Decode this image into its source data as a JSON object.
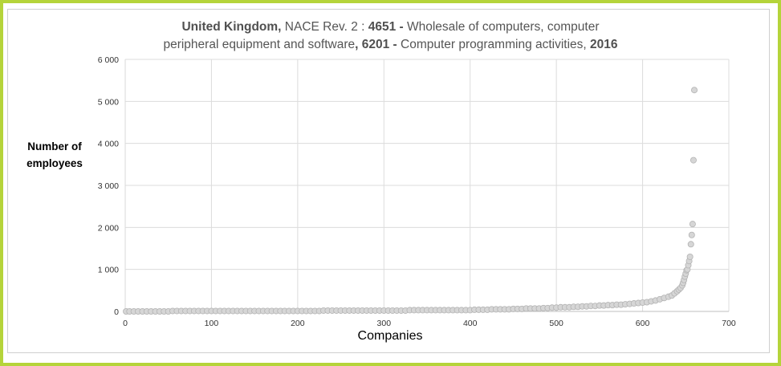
{
  "title": {
    "line1": [
      {
        "text": "United Kingdom,",
        "bold": true
      },
      {
        "text": " NACE Rev. 2 : ",
        "bold": false
      },
      {
        "text": "4651 -",
        "bold": true
      },
      {
        "text": " Wholesale of computers, computer",
        "bold": false
      }
    ],
    "line2": [
      {
        "text": "peripheral equipment and software",
        "bold": false
      },
      {
        "text": ", 6201 -",
        "bold": true
      },
      {
        "text": " Computer programming activities,  ",
        "bold": false
      },
      {
        "text": "2016",
        "bold": true
      }
    ]
  },
  "colors": {
    "frame": "#b5d43a",
    "marker_fill": "#d6d6d6",
    "marker_stroke": "#b3b3b3",
    "grid": "#dcdcdc"
  },
  "chart_data": {
    "type": "scatter",
    "title": "United Kingdom, NACE Rev. 2 : 4651 - Wholesale of computers, computer peripheral equipment and software, 6201 - Computer programming activities,  2016",
    "xlabel": "Companies",
    "ylabel_lines": [
      "Number of",
      "employees"
    ],
    "xlim": [
      0,
      700
    ],
    "ylim": [
      0,
      6000
    ],
    "x_ticks": [
      0,
      100,
      200,
      300,
      400,
      500,
      600,
      700
    ],
    "y_ticks": [
      0,
      1000,
      2000,
      3000,
      4000,
      5000,
      6000
    ],
    "x_tick_labels": [
      "0",
      "100",
      "200",
      "300",
      "400",
      "500",
      "600",
      "700"
    ],
    "y_tick_labels": [
      "0",
      "1 000",
      "2 000",
      "3 000",
      "4 000",
      "5 000",
      "6 000"
    ],
    "grid": true,
    "legend": "none",
    "marker": "circle",
    "points": [
      [
        1,
        0
      ],
      [
        5,
        0
      ],
      [
        10,
        0
      ],
      [
        15,
        0
      ],
      [
        20,
        0
      ],
      [
        25,
        0
      ],
      [
        30,
        0
      ],
      [
        35,
        0
      ],
      [
        40,
        0
      ],
      [
        45,
        0
      ],
      [
        50,
        0
      ],
      [
        55,
        10
      ],
      [
        60,
        10
      ],
      [
        65,
        10
      ],
      [
        70,
        10
      ],
      [
        75,
        10
      ],
      [
        80,
        10
      ],
      [
        85,
        10
      ],
      [
        90,
        10
      ],
      [
        95,
        10
      ],
      [
        100,
        10
      ],
      [
        105,
        10
      ],
      [
        110,
        10
      ],
      [
        115,
        10
      ],
      [
        120,
        10
      ],
      [
        125,
        10
      ],
      [
        130,
        10
      ],
      [
        135,
        10
      ],
      [
        140,
        10
      ],
      [
        145,
        10
      ],
      [
        150,
        10
      ],
      [
        155,
        10
      ],
      [
        160,
        10
      ],
      [
        165,
        10
      ],
      [
        170,
        10
      ],
      [
        175,
        10
      ],
      [
        180,
        10
      ],
      [
        185,
        10
      ],
      [
        190,
        10
      ],
      [
        195,
        10
      ],
      [
        200,
        10
      ],
      [
        205,
        10
      ],
      [
        210,
        10
      ],
      [
        215,
        10
      ],
      [
        220,
        10
      ],
      [
        225,
        10
      ],
      [
        230,
        20
      ],
      [
        235,
        20
      ],
      [
        240,
        20
      ],
      [
        245,
        20
      ],
      [
        250,
        20
      ],
      [
        255,
        20
      ],
      [
        260,
        20
      ],
      [
        265,
        20
      ],
      [
        270,
        20
      ],
      [
        275,
        20
      ],
      [
        280,
        20
      ],
      [
        285,
        20
      ],
      [
        290,
        20
      ],
      [
        295,
        20
      ],
      [
        300,
        20
      ],
      [
        305,
        20
      ],
      [
        310,
        20
      ],
      [
        315,
        20
      ],
      [
        320,
        20
      ],
      [
        325,
        20
      ],
      [
        330,
        30
      ],
      [
        335,
        30
      ],
      [
        340,
        30
      ],
      [
        345,
        30
      ],
      [
        350,
        30
      ],
      [
        355,
        30
      ],
      [
        360,
        30
      ],
      [
        365,
        30
      ],
      [
        370,
        30
      ],
      [
        375,
        30
      ],
      [
        380,
        30
      ],
      [
        385,
        30
      ],
      [
        390,
        30
      ],
      [
        395,
        30
      ],
      [
        400,
        30
      ],
      [
        405,
        40
      ],
      [
        410,
        40
      ],
      [
        415,
        40
      ],
      [
        420,
        40
      ],
      [
        425,
        50
      ],
      [
        430,
        50
      ],
      [
        435,
        50
      ],
      [
        440,
        50
      ],
      [
        445,
        50
      ],
      [
        450,
        60
      ],
      [
        455,
        60
      ],
      [
        460,
        60
      ],
      [
        465,
        70
      ],
      [
        470,
        70
      ],
      [
        475,
        70
      ],
      [
        480,
        70
      ],
      [
        485,
        80
      ],
      [
        490,
        80
      ],
      [
        495,
        90
      ],
      [
        500,
        90
      ],
      [
        505,
        100
      ],
      [
        510,
        100
      ],
      [
        515,
        100
      ],
      [
        520,
        110
      ],
      [
        525,
        110
      ],
      [
        530,
        120
      ],
      [
        535,
        120
      ],
      [
        540,
        130
      ],
      [
        545,
        130
      ],
      [
        550,
        140
      ],
      [
        555,
        140
      ],
      [
        560,
        150
      ],
      [
        565,
        150
      ],
      [
        570,
        160
      ],
      [
        575,
        160
      ],
      [
        580,
        170
      ],
      [
        585,
        180
      ],
      [
        590,
        190
      ],
      [
        595,
        200
      ],
      [
        600,
        210
      ],
      [
        605,
        220
      ],
      [
        610,
        240
      ],
      [
        615,
        260
      ],
      [
        620,
        290
      ],
      [
        625,
        320
      ],
      [
        630,
        350
      ],
      [
        634,
        380
      ],
      [
        637,
        430
      ],
      [
        640,
        480
      ],
      [
        642,
        520
      ],
      [
        644,
        560
      ],
      [
        646,
        620
      ],
      [
        647,
        680
      ],
      [
        648,
        750
      ],
      [
        649,
        830
      ],
      [
        650,
        900
      ],
      [
        651,
        980
      ],
      [
        652,
        1000
      ],
      [
        653,
        1100
      ],
      [
        654,
        1200
      ],
      [
        655,
        1300
      ],
      [
        656,
        1600
      ],
      [
        657,
        1820
      ],
      [
        658,
        2080
      ],
      [
        659,
        3600
      ],
      [
        660,
        5270
      ]
    ]
  }
}
